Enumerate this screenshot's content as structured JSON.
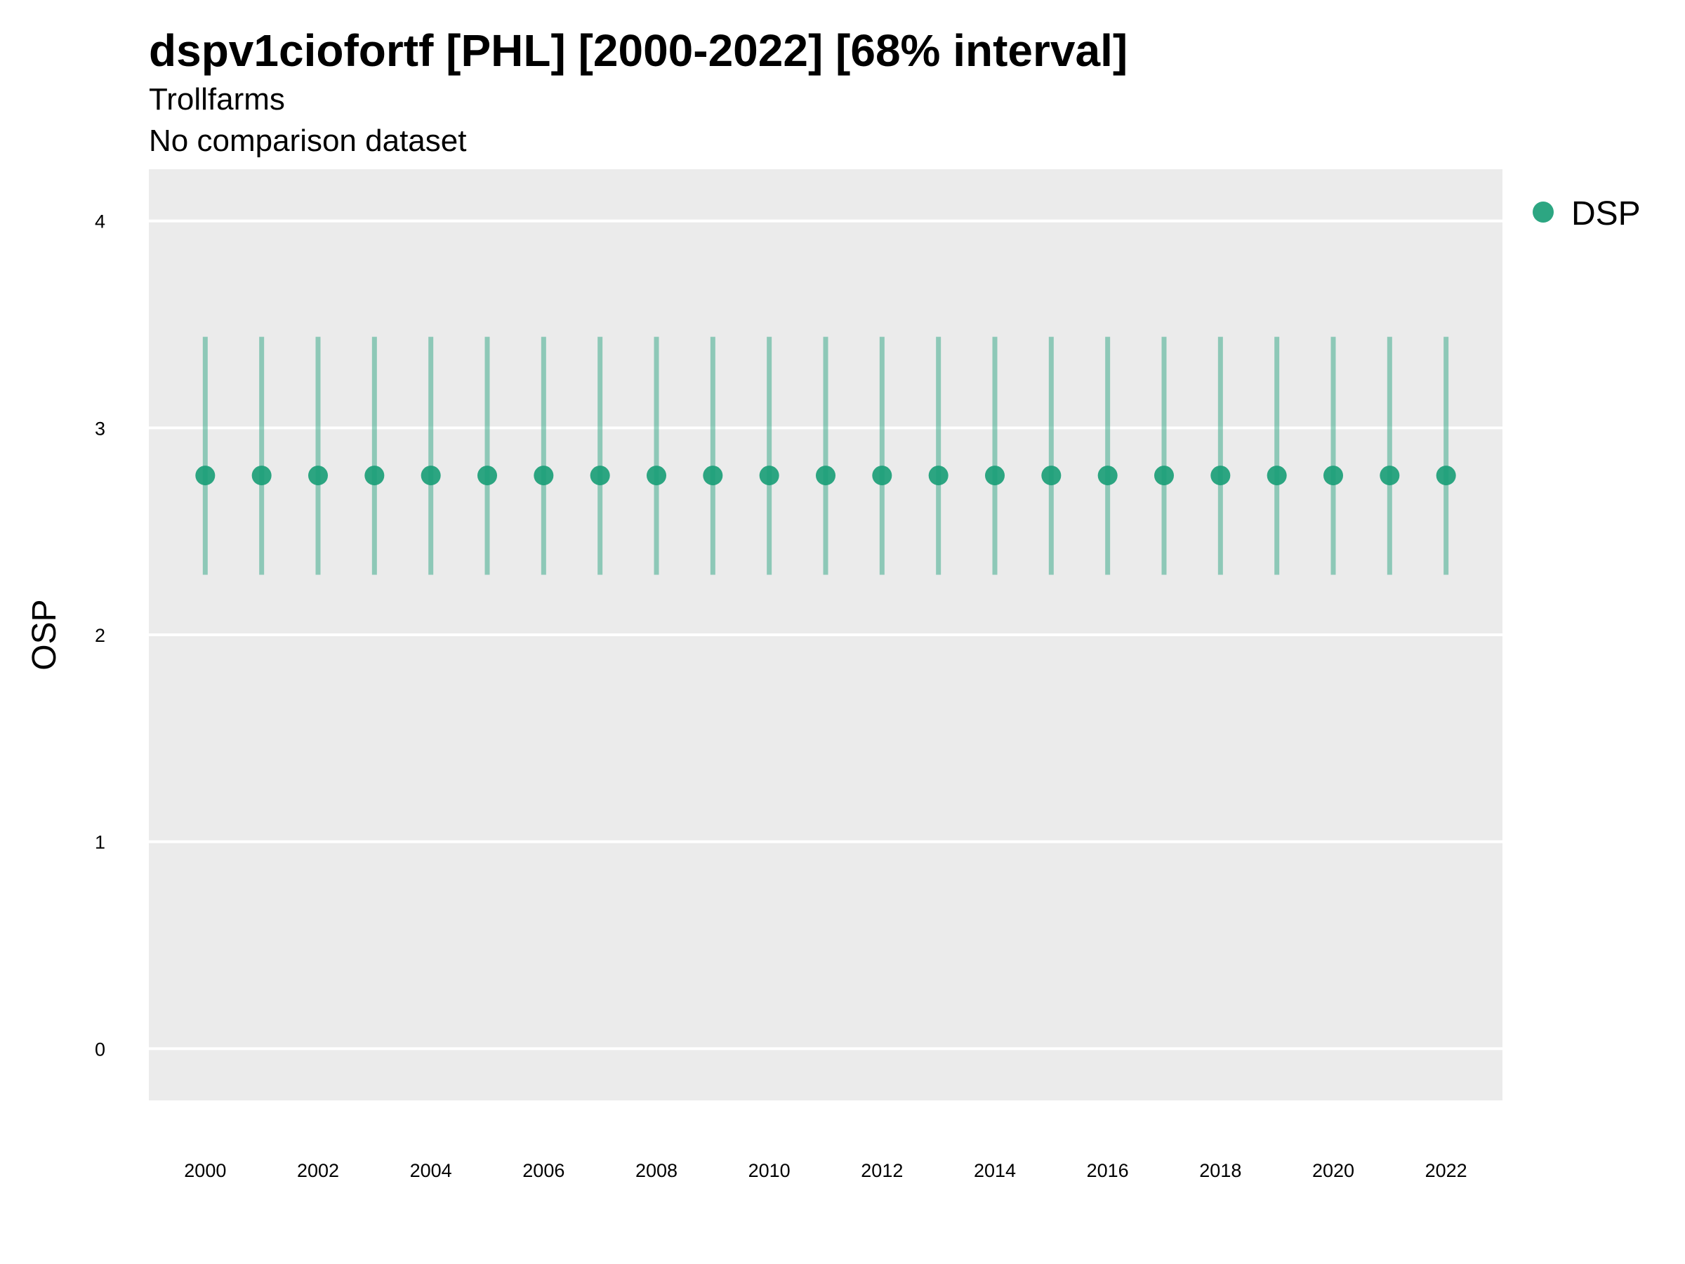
{
  "chart_data": {
    "type": "scatter",
    "title": "dspv1ciofortf [PHL] [2000-2022] [68% interval]",
    "subtitle": "Trollfarms",
    "caption": "No comparison dataset",
    "ylabel": "OSP",
    "xlabel": "",
    "x": [
      2000,
      2001,
      2002,
      2003,
      2004,
      2005,
      2006,
      2007,
      2008,
      2009,
      2010,
      2011,
      2012,
      2013,
      2014,
      2015,
      2016,
      2017,
      2018,
      2019,
      2020,
      2021,
      2022
    ],
    "x_ticks": [
      "2000",
      "2002",
      "2004",
      "2006",
      "2008",
      "2010",
      "2012",
      "2014",
      "2016",
      "2018",
      "2020",
      "2022"
    ],
    "y_ticks": [
      "0",
      "1",
      "2",
      "3",
      "4"
    ],
    "ylim": [
      -0.25,
      4.25
    ],
    "xlim": [
      1999,
      2023
    ],
    "grid": true,
    "legend_position": "top-right",
    "series": [
      {
        "name": "DSP",
        "color": "#1b9e77",
        "values": [
          2.77,
          2.77,
          2.77,
          2.77,
          2.77,
          2.77,
          2.77,
          2.77,
          2.77,
          2.77,
          2.77,
          2.77,
          2.77,
          2.77,
          2.77,
          2.77,
          2.77,
          2.77,
          2.77,
          2.77,
          2.77,
          2.77,
          2.77
        ],
        "lower": [
          2.29,
          2.29,
          2.29,
          2.29,
          2.29,
          2.29,
          2.29,
          2.29,
          2.29,
          2.29,
          2.29,
          2.29,
          2.29,
          2.29,
          2.29,
          2.29,
          2.29,
          2.29,
          2.29,
          2.29,
          2.29,
          2.29,
          2.29
        ],
        "upper": [
          3.44,
          3.44,
          3.44,
          3.44,
          3.44,
          3.44,
          3.44,
          3.44,
          3.44,
          3.44,
          3.44,
          3.44,
          3.44,
          3.44,
          3.44,
          3.44,
          3.44,
          3.44,
          3.44,
          3.44,
          3.44,
          3.44,
          3.44
        ]
      }
    ],
    "panel_color": "#ebebeb",
    "grid_color": "#ffffff"
  }
}
